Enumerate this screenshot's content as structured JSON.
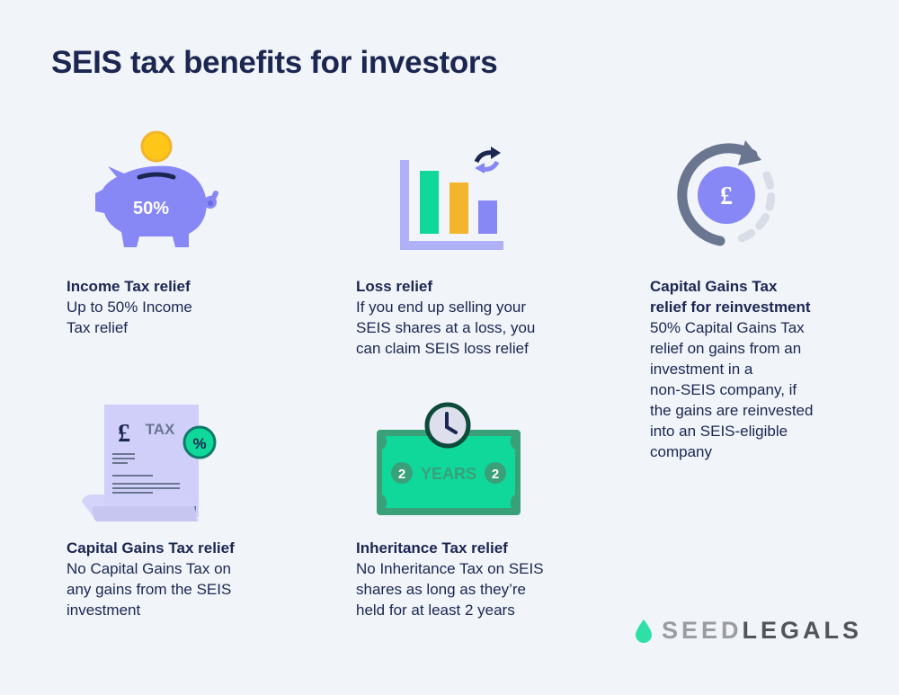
{
  "title": "SEIS tax benefits for investors",
  "benefits": [
    {
      "heading": [
        "Income Tax relief"
      ],
      "body": [
        "Up to 50% Income",
        "Tax relief"
      ],
      "icon": "piggy-bank-icon",
      "icon_text": "50%"
    },
    {
      "heading": [
        "Loss relief"
      ],
      "body": [
        "If you end up selling your",
        "SEIS shares at a loss, you",
        "can claim SEIS loss relief"
      ],
      "icon": "bar-chart-icon"
    },
    {
      "heading": [
        "Capital Gains Tax",
        "relief for reinvestment"
      ],
      "body": [
        "50% Capital Gains Tax",
        "relief on gains from an",
        "investment in a",
        "non-SEIS company, if",
        "the gains are reinvested",
        "into an SEIS-eligible",
        "company"
      ],
      "icon": "pound-cycle-icon",
      "icon_text": "£"
    },
    {
      "heading": [
        "Capital Gains Tax relief"
      ],
      "body": [
        "No Capital Gains Tax on",
        "any gains from the SEIS",
        "investment"
      ],
      "icon": "tax-document-icon",
      "icon_text": "TAX",
      "icon_symbol": "£",
      "badge_text": "%"
    },
    {
      "heading": [
        "Inheritance Tax relief"
      ],
      "body": [
        "No Inheritance Tax on SEIS",
        "shares as long as they’re",
        "held for at least 2 years"
      ],
      "icon": "banknote-clock-icon",
      "icon_text": "YEARS",
      "icon_number": "2"
    }
  ],
  "logo": {
    "part1": "SEED",
    "part2": "LEGALS",
    "icon": "droplet-icon"
  },
  "colors": {
    "navy": "#1b2651",
    "purple": "#8787f5",
    "green": "#0fd89a",
    "gold": "#f2b52b",
    "background": "#f1f4f9"
  }
}
